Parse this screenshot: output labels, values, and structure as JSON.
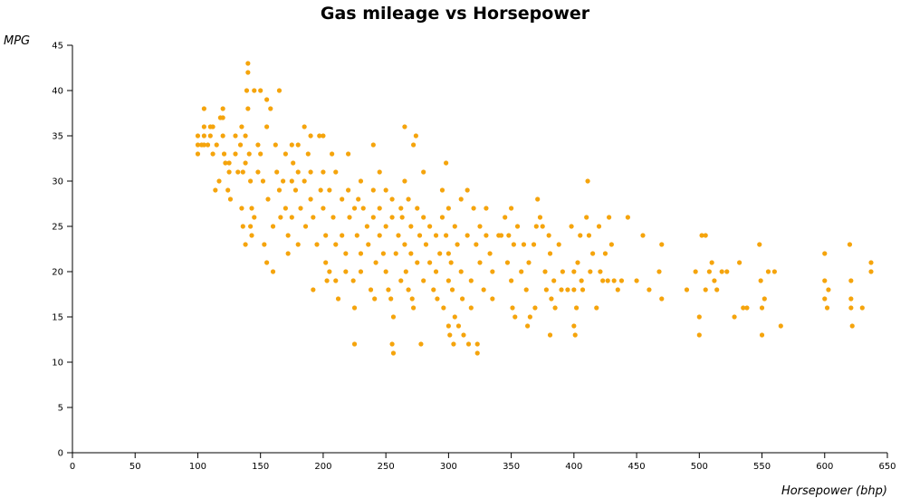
{
  "chart_data": {
    "type": "scatter",
    "title": "Gas mileage vs Horsepower",
    "xlabel": "Horsepower (bhp)",
    "ylabel": "MPG",
    "xlim": [
      0,
      650
    ],
    "ylim": [
      0,
      45
    ],
    "x_ticks": [
      0,
      50,
      100,
      150,
      200,
      250,
      300,
      350,
      400,
      450,
      500,
      550,
      600,
      650
    ],
    "y_ticks": [
      0,
      5,
      10,
      15,
      20,
      25,
      30,
      35,
      40,
      45
    ],
    "grid": false,
    "color": "#f5a40c",
    "series": [
      {
        "points": [
          [
            100,
            33
          ],
          [
            100,
            34
          ],
          [
            100,
            35
          ],
          [
            103,
            34
          ],
          [
            105,
            34
          ],
          [
            105,
            35
          ],
          [
            105,
            36
          ],
          [
            105,
            38
          ],
          [
            108,
            34
          ],
          [
            110,
            35
          ],
          [
            110,
            36
          ],
          [
            112,
            36
          ],
          [
            112,
            33
          ],
          [
            114,
            29
          ],
          [
            115,
            34
          ],
          [
            117,
            30
          ],
          [
            118,
            37
          ],
          [
            120,
            35
          ],
          [
            120,
            37
          ],
          [
            120,
            38
          ],
          [
            121,
            33
          ],
          [
            122,
            32
          ],
          [
            124,
            29
          ],
          [
            125,
            31
          ],
          [
            125,
            32
          ],
          [
            126,
            28
          ],
          [
            130,
            33
          ],
          [
            130,
            35
          ],
          [
            132,
            31
          ],
          [
            134,
            34
          ],
          [
            135,
            27
          ],
          [
            135,
            36
          ],
          [
            136,
            25
          ],
          [
            136,
            31
          ],
          [
            138,
            23
          ],
          [
            138,
            32
          ],
          [
            138,
            35
          ],
          [
            139,
            40
          ],
          [
            140,
            42
          ],
          [
            140,
            43
          ],
          [
            140,
            38
          ],
          [
            141,
            33
          ],
          [
            142,
            30
          ],
          [
            142,
            25
          ],
          [
            143,
            27
          ],
          [
            143,
            24
          ],
          [
            145,
            40
          ],
          [
            145,
            26
          ],
          [
            148,
            34
          ],
          [
            148,
            31
          ],
          [
            150,
            40
          ],
          [
            150,
            33
          ],
          [
            152,
            30
          ],
          [
            153,
            23
          ],
          [
            155,
            39
          ],
          [
            155,
            21
          ],
          [
            155,
            36
          ],
          [
            156,
            28
          ],
          [
            158,
            38
          ],
          [
            160,
            20
          ],
          [
            160,
            25
          ],
          [
            162,
            34
          ],
          [
            163,
            31
          ],
          [
            165,
            40
          ],
          [
            165,
            29
          ],
          [
            166,
            26
          ],
          [
            168,
            30
          ],
          [
            170,
            33
          ],
          [
            170,
            27
          ],
          [
            172,
            24
          ],
          [
            172,
            22
          ],
          [
            175,
            34
          ],
          [
            175,
            30
          ],
          [
            175,
            26
          ],
          [
            176,
            32
          ],
          [
            178,
            29
          ],
          [
            180,
            34
          ],
          [
            180,
            31
          ],
          [
            180,
            23
          ],
          [
            182,
            27
          ],
          [
            185,
            36
          ],
          [
            185,
            30
          ],
          [
            186,
            25
          ],
          [
            188,
            33
          ],
          [
            190,
            35
          ],
          [
            190,
            31
          ],
          [
            190,
            28
          ],
          [
            192,
            26
          ],
          [
            192,
            18
          ],
          [
            195,
            23
          ],
          [
            197,
            35
          ],
          [
            198,
            29
          ],
          [
            200,
            35
          ],
          [
            200,
            31
          ],
          [
            200,
            27
          ],
          [
            202,
            24
          ],
          [
            202,
            21
          ],
          [
            203,
            19
          ],
          [
            205,
            29
          ],
          [
            205,
            20
          ],
          [
            207,
            33
          ],
          [
            208,
            26
          ],
          [
            210,
            31
          ],
          [
            210,
            23
          ],
          [
            210,
            19
          ],
          [
            212,
            17
          ],
          [
            215,
            28
          ],
          [
            215,
            24
          ],
          [
            218,
            22
          ],
          [
            218,
            20
          ],
          [
            220,
            33
          ],
          [
            220,
            29
          ],
          [
            221,
            26
          ],
          [
            224,
            19
          ],
          [
            225,
            27
          ],
          [
            225,
            16
          ],
          [
            225,
            12
          ],
          [
            227,
            24
          ],
          [
            228,
            28
          ],
          [
            230,
            30
          ],
          [
            230,
            22
          ],
          [
            230,
            20
          ],
          [
            232,
            27
          ],
          [
            235,
            25
          ],
          [
            236,
            23
          ],
          [
            238,
            18
          ],
          [
            240,
            34
          ],
          [
            240,
            29
          ],
          [
            240,
            26
          ],
          [
            241,
            17
          ],
          [
            242,
            21
          ],
          [
            245,
            31
          ],
          [
            245,
            27
          ],
          [
            245,
            24
          ],
          [
            248,
            22
          ],
          [
            250,
            29
          ],
          [
            250,
            25
          ],
          [
            250,
            20
          ],
          [
            252,
            18
          ],
          [
            254,
            17
          ],
          [
            255,
            28
          ],
          [
            255,
            26
          ],
          [
            255,
            12
          ],
          [
            256,
            15
          ],
          [
            256,
            11
          ],
          [
            258,
            22
          ],
          [
            260,
            24
          ],
          [
            262,
            27
          ],
          [
            262,
            19
          ],
          [
            263,
            26
          ],
          [
            265,
            36
          ],
          [
            265,
            30
          ],
          [
            265,
            23
          ],
          [
            266,
            20
          ],
          [
            268,
            28
          ],
          [
            268,
            18
          ],
          [
            270,
            25
          ],
          [
            270,
            22
          ],
          [
            271,
            17
          ],
          [
            272,
            34
          ],
          [
            272,
            16
          ],
          [
            274,
            35
          ],
          [
            275,
            27
          ],
          [
            275,
            21
          ],
          [
            277,
            24
          ],
          [
            278,
            12
          ],
          [
            280,
            31
          ],
          [
            280,
            26
          ],
          [
            280,
            19
          ],
          [
            282,
            23
          ],
          [
            285,
            25
          ],
          [
            285,
            21
          ],
          [
            288,
            18
          ],
          [
            290,
            24
          ],
          [
            290,
            20
          ],
          [
            291,
            17
          ],
          [
            293,
            22
          ],
          [
            295,
            29
          ],
          [
            295,
            26
          ],
          [
            296,
            16
          ],
          [
            298,
            32
          ],
          [
            298,
            24
          ],
          [
            300,
            27
          ],
          [
            300,
            22
          ],
          [
            300,
            19
          ],
          [
            300,
            14
          ],
          [
            301,
            13
          ],
          [
            302,
            21
          ],
          [
            303,
            18
          ],
          [
            304,
            12
          ],
          [
            305,
            25
          ],
          [
            305,
            15
          ],
          [
            307,
            23
          ],
          [
            308,
            14
          ],
          [
            310,
            28
          ],
          [
            310,
            20
          ],
          [
            311,
            17
          ],
          [
            312,
            13
          ],
          [
            315,
            29
          ],
          [
            315,
            24
          ],
          [
            316,
            12
          ],
          [
            318,
            19
          ],
          [
            318,
            16
          ],
          [
            320,
            27
          ],
          [
            322,
            23
          ],
          [
            323,
            11
          ],
          [
            323,
            12
          ],
          [
            325,
            25
          ],
          [
            325,
            21
          ],
          [
            328,
            18
          ],
          [
            330,
            27
          ],
          [
            330,
            24
          ],
          [
            333,
            22
          ],
          [
            335,
            20
          ],
          [
            335,
            17
          ],
          [
            340,
            24
          ],
          [
            342,
            24
          ],
          [
            345,
            26
          ],
          [
            347,
            21
          ],
          [
            348,
            24
          ],
          [
            350,
            27
          ],
          [
            350,
            19
          ],
          [
            351,
            16
          ],
          [
            352,
            23
          ],
          [
            353,
            15
          ],
          [
            355,
            25
          ],
          [
            358,
            20
          ],
          [
            360,
            23
          ],
          [
            362,
            18
          ],
          [
            363,
            14
          ],
          [
            364,
            21
          ],
          [
            365,
            15
          ],
          [
            368,
            23
          ],
          [
            369,
            16
          ],
          [
            370,
            25
          ],
          [
            371,
            28
          ],
          [
            373,
            26
          ],
          [
            375,
            25
          ],
          [
            377,
            20
          ],
          [
            378,
            18
          ],
          [
            380,
            24
          ],
          [
            381,
            22
          ],
          [
            381,
            13
          ],
          [
            382,
            17
          ],
          [
            384,
            19
          ],
          [
            385,
            16
          ],
          [
            388,
            23
          ],
          [
            390,
            18
          ],
          [
            391,
            20
          ],
          [
            395,
            18
          ],
          [
            398,
            25
          ],
          [
            400,
            20
          ],
          [
            400,
            18
          ],
          [
            400,
            14
          ],
          [
            401,
            13
          ],
          [
            402,
            16
          ],
          [
            403,
            21
          ],
          [
            405,
            24
          ],
          [
            406,
            19
          ],
          [
            407,
            18
          ],
          [
            410,
            26
          ],
          [
            411,
            30
          ],
          [
            412,
            24
          ],
          [
            413,
            20
          ],
          [
            415,
            22
          ],
          [
            418,
            16
          ],
          [
            420,
            25
          ],
          [
            421,
            20
          ],
          [
            423,
            19
          ],
          [
            425,
            22
          ],
          [
            427,
            19
          ],
          [
            428,
            26
          ],
          [
            430,
            23
          ],
          [
            432,
            19
          ],
          [
            435,
            18
          ],
          [
            438,
            19
          ],
          [
            443,
            26
          ],
          [
            450,
            19
          ],
          [
            455,
            24
          ],
          [
            460,
            18
          ],
          [
            468,
            20
          ],
          [
            470,
            23
          ],
          [
            470,
            17
          ],
          [
            490,
            18
          ],
          [
            497,
            20
          ],
          [
            500,
            13
          ],
          [
            500,
            15
          ],
          [
            502,
            24
          ],
          [
            505,
            24
          ],
          [
            505,
            18
          ],
          [
            508,
            20
          ],
          [
            510,
            21
          ],
          [
            512,
            19
          ],
          [
            514,
            18
          ],
          [
            518,
            20
          ],
          [
            522,
            20
          ],
          [
            528,
            15
          ],
          [
            532,
            21
          ],
          [
            535,
            16
          ],
          [
            538,
            16
          ],
          [
            548,
            23
          ],
          [
            549,
            19
          ],
          [
            550,
            16
          ],
          [
            550,
            13
          ],
          [
            552,
            17
          ],
          [
            555,
            20
          ],
          [
            560,
            20
          ],
          [
            565,
            14
          ],
          [
            600,
            22
          ],
          [
            600,
            19
          ],
          [
            600,
            17
          ],
          [
            602,
            16
          ],
          [
            603,
            18
          ],
          [
            620,
            23
          ],
          [
            621,
            19
          ],
          [
            621,
            17
          ],
          [
            621,
            16
          ],
          [
            622,
            14
          ],
          [
            630,
            16
          ],
          [
            637,
            21
          ],
          [
            637,
            20
          ]
        ]
      }
    ]
  }
}
